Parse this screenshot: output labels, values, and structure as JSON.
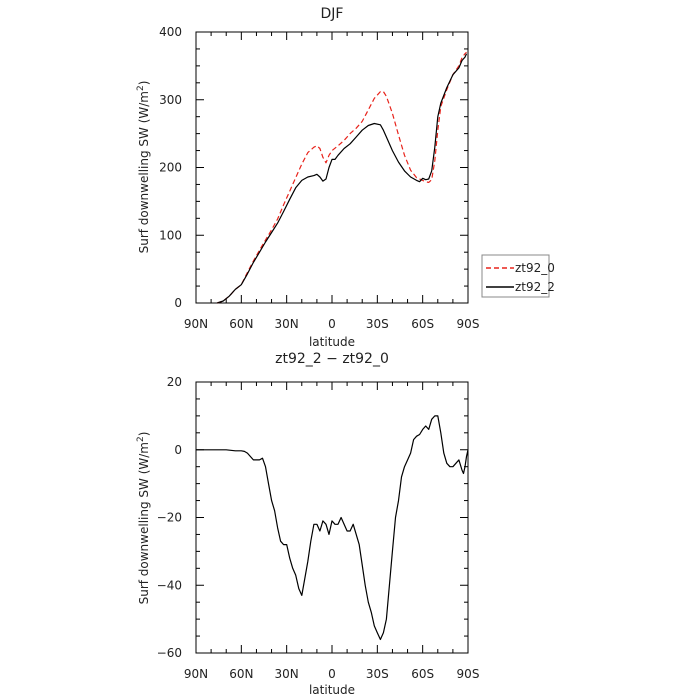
{
  "chart_data": [
    {
      "type": "line",
      "title": "DJF",
      "xlabel": "latitude",
      "ylabel": "Surf downwelling SW (W/m²)",
      "xlim": [
        90,
        -90
      ],
      "ylim": [
        0,
        400
      ],
      "xticks": [
        90,
        60,
        30,
        0,
        -30,
        -60,
        -90
      ],
      "xtick_labels": [
        "90N",
        "60N",
        "30N",
        "0",
        "30S",
        "60S",
        "90S"
      ],
      "yticks": [
        0,
        100,
        200,
        300,
        400
      ],
      "ytick_labels": [
        "0",
        "100",
        "200",
        "300",
        "400"
      ],
      "grid": false,
      "legend_position": "right",
      "series": [
        {
          "name": "zt92_0",
          "color": "#e8231b",
          "dash": "dashed",
          "points": [
            [
              76,
              0
            ],
            [
              72,
              3
            ],
            [
              68,
              10
            ],
            [
              64,
              20
            ],
            [
              60,
              27
            ],
            [
              56,
              45
            ],
            [
              52,
              62
            ],
            [
              48,
              78
            ],
            [
              44,
              93
            ],
            [
              40,
              108
            ],
            [
              36,
              124
            ],
            [
              32,
              145
            ],
            [
              28,
              165
            ],
            [
              24,
              185
            ],
            [
              20,
              205
            ],
            [
              16,
              222
            ],
            [
              12,
              230
            ],
            [
              10,
              232
            ],
            [
              8,
              228
            ],
            [
              6,
              215
            ],
            [
              4,
              207
            ],
            [
              2,
              218
            ],
            [
              0,
              225
            ],
            [
              -4,
              232
            ],
            [
              -8,
              240
            ],
            [
              -12,
              250
            ],
            [
              -16,
              258
            ],
            [
              -20,
              268
            ],
            [
              -24,
              285
            ],
            [
              -28,
              302
            ],
            [
              -32,
              312
            ],
            [
              -34,
              312
            ],
            [
              -36,
              305
            ],
            [
              -40,
              280
            ],
            [
              -44,
              248
            ],
            [
              -48,
              218
            ],
            [
              -52,
              196
            ],
            [
              -56,
              185
            ],
            [
              -60,
              181
            ],
            [
              -62,
              179
            ],
            [
              -64,
              178
            ],
            [
              -66,
              182
            ],
            [
              -68,
              210
            ],
            [
              -70,
              255
            ],
            [
              -72,
              290
            ],
            [
              -76,
              315
            ],
            [
              -80,
              337
            ],
            [
              -84,
              350
            ],
            [
              -86,
              362
            ],
            [
              -88,
              368
            ],
            [
              -89,
              370
            ]
          ]
        },
        {
          "name": "zt92_2",
          "color": "#000000",
          "dash": "solid",
          "points": [
            [
              76,
              0
            ],
            [
              72,
              3
            ],
            [
              68,
              10
            ],
            [
              64,
              20
            ],
            [
              60,
              27
            ],
            [
              56,
              43
            ],
            [
              52,
              60
            ],
            [
              48,
              75
            ],
            [
              44,
              90
            ],
            [
              40,
              104
            ],
            [
              36,
              118
            ],
            [
              32,
              135
            ],
            [
              28,
              153
            ],
            [
              24,
              170
            ],
            [
              20,
              181
            ],
            [
              16,
              186
            ],
            [
              12,
              188
            ],
            [
              10,
              190
            ],
            [
              8,
              186
            ],
            [
              6,
              180
            ],
            [
              4,
              183
            ],
            [
              2,
              200
            ],
            [
              0,
              212
            ],
            [
              -2,
              212
            ],
            [
              -4,
              218
            ],
            [
              -8,
              228
            ],
            [
              -12,
              235
            ],
            [
              -16,
              245
            ],
            [
              -20,
              255
            ],
            [
              -24,
              262
            ],
            [
              -28,
              265
            ],
            [
              -32,
              263
            ],
            [
              -34,
              255
            ],
            [
              -36,
              245
            ],
            [
              -40,
              225
            ],
            [
              -44,
              208
            ],
            [
              -48,
              195
            ],
            [
              -52,
              186
            ],
            [
              -56,
              181
            ],
            [
              -58,
              179
            ],
            [
              -60,
              184
            ],
            [
              -62,
              182
            ],
            [
              -64,
              183
            ],
            [
              -66,
              195
            ],
            [
              -68,
              230
            ],
            [
              -70,
              275
            ],
            [
              -72,
              295
            ],
            [
              -76,
              318
            ],
            [
              -80,
              337
            ],
            [
              -84,
              347
            ],
            [
              -86,
              358
            ],
            [
              -88,
              363
            ],
            [
              -89,
              368
            ]
          ]
        }
      ]
    },
    {
      "type": "line",
      "title": "zt92_2 − zt92_0",
      "xlabel": "latitude",
      "ylabel": "Surf downwelling SW (W/m²)",
      "xlim": [
        90,
        -90
      ],
      "ylim": [
        -60,
        20
      ],
      "xticks": [
        90,
        60,
        30,
        0,
        -30,
        -60,
        -90
      ],
      "xtick_labels": [
        "90N",
        "60N",
        "30N",
        "0",
        "30S",
        "60S",
        "90S"
      ],
      "yticks": [
        -60,
        -40,
        -20,
        0,
        20
      ],
      "ytick_labels": [
        "−60",
        "−40",
        "−20",
        "0",
        "20"
      ],
      "grid": false,
      "series": [
        {
          "color": "#000000",
          "dash": "solid",
          "points": [
            [
              90,
              0
            ],
            [
              80,
              0
            ],
            [
              70,
              0
            ],
            [
              64,
              -0.3
            ],
            [
              60,
              -0.3
            ],
            [
              58,
              -0.5
            ],
            [
              56,
              -1
            ],
            [
              54,
              -2
            ],
            [
              52,
              -3
            ],
            [
              50,
              -3
            ],
            [
              48,
              -3
            ],
            [
              46,
              -2.5
            ],
            [
              44,
              -5
            ],
            [
              42,
              -10
            ],
            [
              40,
              -15
            ],
            [
              38,
              -18
            ],
            [
              36,
              -23
            ],
            [
              34,
              -27
            ],
            [
              32,
              -28
            ],
            [
              30,
              -28
            ],
            [
              28,
              -32
            ],
            [
              26,
              -35
            ],
            [
              24,
              -37
            ],
            [
              22,
              -41
            ],
            [
              20,
              -43
            ],
            [
              18,
              -38
            ],
            [
              16,
              -33
            ],
            [
              14,
              -27
            ],
            [
              12,
              -22
            ],
            [
              10,
              -22
            ],
            [
              8,
              -24
            ],
            [
              6,
              -21
            ],
            [
              4,
              -22
            ],
            [
              2,
              -25
            ],
            [
              0,
              -21
            ],
            [
              -2,
              -22
            ],
            [
              -4,
              -22
            ],
            [
              -6,
              -20
            ],
            [
              -8,
              -22
            ],
            [
              -10,
              -24
            ],
            [
              -12,
              -24
            ],
            [
              -14,
              -22
            ],
            [
              -16,
              -25
            ],
            [
              -18,
              -28
            ],
            [
              -20,
              -34
            ],
            [
              -22,
              -40
            ],
            [
              -24,
              -45
            ],
            [
              -26,
              -48
            ],
            [
              -28,
              -52
            ],
            [
              -30,
              -54
            ],
            [
              -32,
              -56
            ],
            [
              -34,
              -54
            ],
            [
              -36,
              -50
            ],
            [
              -38,
              -40
            ],
            [
              -40,
              -30
            ],
            [
              -42,
              -20
            ],
            [
              -44,
              -15
            ],
            [
              -46,
              -8
            ],
            [
              -48,
              -5
            ],
            [
              -50,
              -3
            ],
            [
              -52,
              -1
            ],
            [
              -54,
              3
            ],
            [
              -56,
              4
            ],
            [
              -58,
              4.5
            ],
            [
              -60,
              6
            ],
            [
              -62,
              7
            ],
            [
              -64,
              6
            ],
            [
              -66,
              9
            ],
            [
              -68,
              10
            ],
            [
              -70,
              10
            ],
            [
              -72,
              5
            ],
            [
              -74,
              -1
            ],
            [
              -76,
              -4
            ],
            [
              -78,
              -5
            ],
            [
              -80,
              -5
            ],
            [
              -82,
              -4
            ],
            [
              -84,
              -3
            ],
            [
              -86,
              -6
            ],
            [
              -87,
              -7
            ],
            [
              -88,
              -5
            ],
            [
              -89,
              -2
            ],
            [
              -90,
              0
            ]
          ]
        }
      ]
    }
  ]
}
